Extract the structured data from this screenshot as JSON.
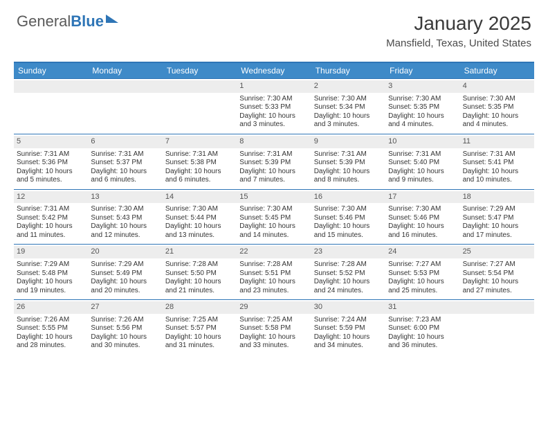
{
  "logo": {
    "text1": "General",
    "text2": "Blue"
  },
  "title": "January 2025",
  "location": "Mansfield, Texas, United States",
  "colors": {
    "header_bg": "#3e8ac8",
    "header_text": "#ffffff",
    "border": "#2e75b6",
    "daynum_bg": "#ededed",
    "body_text": "#333333"
  },
  "day_names": [
    "Sunday",
    "Monday",
    "Tuesday",
    "Wednesday",
    "Thursday",
    "Friday",
    "Saturday"
  ],
  "weeks": [
    [
      null,
      null,
      null,
      {
        "n": "1",
        "sr": "7:30 AM",
        "ss": "5:33 PM",
        "dl": "10 hours and 3 minutes."
      },
      {
        "n": "2",
        "sr": "7:30 AM",
        "ss": "5:34 PM",
        "dl": "10 hours and 3 minutes."
      },
      {
        "n": "3",
        "sr": "7:30 AM",
        "ss": "5:35 PM",
        "dl": "10 hours and 4 minutes."
      },
      {
        "n": "4",
        "sr": "7:30 AM",
        "ss": "5:35 PM",
        "dl": "10 hours and 4 minutes."
      }
    ],
    [
      {
        "n": "5",
        "sr": "7:31 AM",
        "ss": "5:36 PM",
        "dl": "10 hours and 5 minutes."
      },
      {
        "n": "6",
        "sr": "7:31 AM",
        "ss": "5:37 PM",
        "dl": "10 hours and 6 minutes."
      },
      {
        "n": "7",
        "sr": "7:31 AM",
        "ss": "5:38 PM",
        "dl": "10 hours and 6 minutes."
      },
      {
        "n": "8",
        "sr": "7:31 AM",
        "ss": "5:39 PM",
        "dl": "10 hours and 7 minutes."
      },
      {
        "n": "9",
        "sr": "7:31 AM",
        "ss": "5:39 PM",
        "dl": "10 hours and 8 minutes."
      },
      {
        "n": "10",
        "sr": "7:31 AM",
        "ss": "5:40 PM",
        "dl": "10 hours and 9 minutes."
      },
      {
        "n": "11",
        "sr": "7:31 AM",
        "ss": "5:41 PM",
        "dl": "10 hours and 10 minutes."
      }
    ],
    [
      {
        "n": "12",
        "sr": "7:31 AM",
        "ss": "5:42 PM",
        "dl": "10 hours and 11 minutes."
      },
      {
        "n": "13",
        "sr": "7:30 AM",
        "ss": "5:43 PM",
        "dl": "10 hours and 12 minutes."
      },
      {
        "n": "14",
        "sr": "7:30 AM",
        "ss": "5:44 PM",
        "dl": "10 hours and 13 minutes."
      },
      {
        "n": "15",
        "sr": "7:30 AM",
        "ss": "5:45 PM",
        "dl": "10 hours and 14 minutes."
      },
      {
        "n": "16",
        "sr": "7:30 AM",
        "ss": "5:46 PM",
        "dl": "10 hours and 15 minutes."
      },
      {
        "n": "17",
        "sr": "7:30 AM",
        "ss": "5:46 PM",
        "dl": "10 hours and 16 minutes."
      },
      {
        "n": "18",
        "sr": "7:29 AM",
        "ss": "5:47 PM",
        "dl": "10 hours and 17 minutes."
      }
    ],
    [
      {
        "n": "19",
        "sr": "7:29 AM",
        "ss": "5:48 PM",
        "dl": "10 hours and 19 minutes."
      },
      {
        "n": "20",
        "sr": "7:29 AM",
        "ss": "5:49 PM",
        "dl": "10 hours and 20 minutes."
      },
      {
        "n": "21",
        "sr": "7:28 AM",
        "ss": "5:50 PM",
        "dl": "10 hours and 21 minutes."
      },
      {
        "n": "22",
        "sr": "7:28 AM",
        "ss": "5:51 PM",
        "dl": "10 hours and 23 minutes."
      },
      {
        "n": "23",
        "sr": "7:28 AM",
        "ss": "5:52 PM",
        "dl": "10 hours and 24 minutes."
      },
      {
        "n": "24",
        "sr": "7:27 AM",
        "ss": "5:53 PM",
        "dl": "10 hours and 25 minutes."
      },
      {
        "n": "25",
        "sr": "7:27 AM",
        "ss": "5:54 PM",
        "dl": "10 hours and 27 minutes."
      }
    ],
    [
      {
        "n": "26",
        "sr": "7:26 AM",
        "ss": "5:55 PM",
        "dl": "10 hours and 28 minutes."
      },
      {
        "n": "27",
        "sr": "7:26 AM",
        "ss": "5:56 PM",
        "dl": "10 hours and 30 minutes."
      },
      {
        "n": "28",
        "sr": "7:25 AM",
        "ss": "5:57 PM",
        "dl": "10 hours and 31 minutes."
      },
      {
        "n": "29",
        "sr": "7:25 AM",
        "ss": "5:58 PM",
        "dl": "10 hours and 33 minutes."
      },
      {
        "n": "30",
        "sr": "7:24 AM",
        "ss": "5:59 PM",
        "dl": "10 hours and 34 minutes."
      },
      {
        "n": "31",
        "sr": "7:23 AM",
        "ss": "6:00 PM",
        "dl": "10 hours and 36 minutes."
      },
      null
    ]
  ],
  "labels": {
    "sunrise": "Sunrise: ",
    "sunset": "Sunset: ",
    "daylight": "Daylight: "
  }
}
